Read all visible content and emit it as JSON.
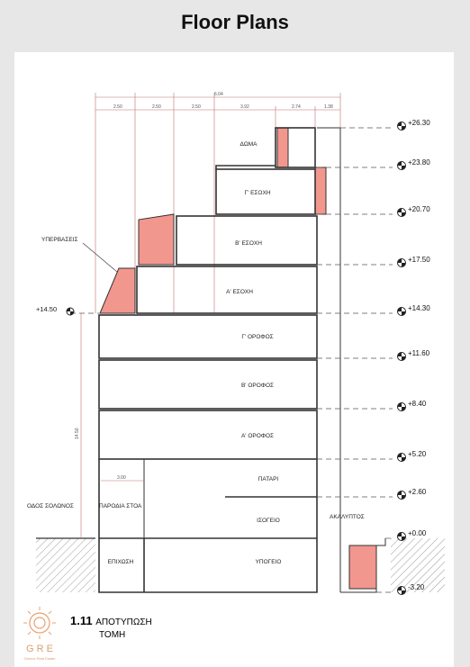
{
  "page": {
    "title": "Floor Plans"
  },
  "drawing": {
    "levels": [
      {
        "name": "ΔΩΜΑ"
      },
      {
        "name": "Γ' ΕΣΟΧΗ"
      },
      {
        "name": "Β' ΕΣΟΧΗ"
      },
      {
        "name": "Α' ΕΣΟΧΗ"
      },
      {
        "name": "Γ' ΟΡΟΦΟΣ"
      },
      {
        "name": "Β' ΟΡΟΦΟΣ"
      },
      {
        "name": "Α' ΟΡΟΦΟΣ"
      },
      {
        "name": "ΠΑΤΑΡΙ"
      },
      {
        "name": "ΙΣΟΓΕΙΟ"
      },
      {
        "name": "ΥΠΟΓΕΙΟ"
      },
      {
        "name": "ΕΠΙΧΩΣΗ"
      }
    ],
    "elevations": [
      "+26.30",
      "+23.80",
      "+20.70",
      "+17.50",
      "+14.30",
      "+11.60",
      "+8.40",
      "+5.20",
      "+2.60",
      "+0.00",
      "-3.20"
    ],
    "left_elevation": "+14.50",
    "labels": {
      "overhangs": "ΥΠΕΡΒΑΣΕΙΣ",
      "street": "ΟΔΟΣ ΣΟΛΩΝΟΣ",
      "arcade": "ΠΑΡΟΔΙΑ ΣΤΟΑ",
      "yard": "ΑΚΑΛΥΠΤΟΣ"
    },
    "dims_top": [
      "2.50",
      "2.50",
      "2.50",
      "3.92",
      "2.74",
      "1.38"
    ],
    "dim_total": "6.04",
    "dim_arcade": "3.00",
    "dim_height_left": "14.50"
  },
  "caption": {
    "number": "1.11",
    "line1": "ΑΠΟΤΥΠΩΣΗ",
    "line2": "ΤΟΜΗ"
  },
  "logo": {
    "text": "G R E",
    "sub": "Greece Real Estate"
  },
  "colors": {
    "hatch": "#f2978e",
    "line": "#333333",
    "dashed": "#555555"
  }
}
